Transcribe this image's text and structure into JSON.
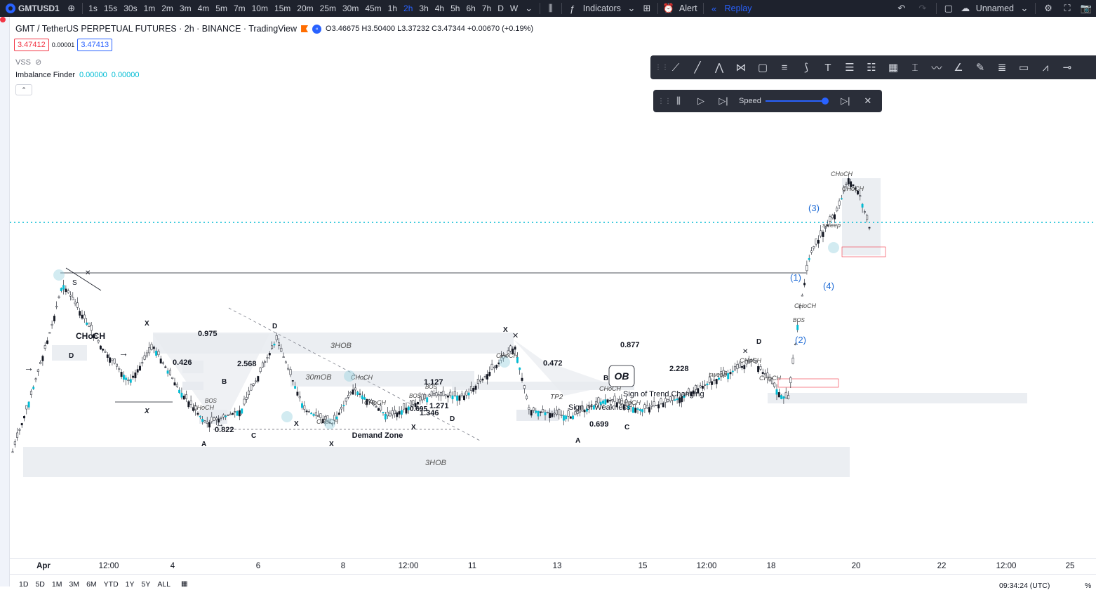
{
  "toolbar": {
    "symbol": "GMTUSD1",
    "intervals": [
      "1s",
      "15s",
      "30s",
      "1m",
      "2m",
      "3m",
      "4m",
      "5m",
      "7m",
      "10m",
      "15m",
      "20m",
      "25m",
      "30m",
      "45m",
      "1h",
      "2h",
      "3h",
      "4h",
      "5h",
      "6h",
      "7h",
      "D",
      "W"
    ],
    "active_interval": "2h",
    "indicators_label": "Indicators",
    "alert_label": "Alert",
    "replay_label": "Replay",
    "layout_name": "Unnamed",
    "icons": [
      "plus-icon",
      "chevron-down-icon",
      "candles-icon",
      "indicators-icon",
      "templates-icon",
      "alert-icon",
      "replay-icon",
      "undo-icon",
      "redo-icon",
      "layout-icon",
      "cloud-icon",
      "gear-icon",
      "fullscreen-icon",
      "camera-icon"
    ]
  },
  "legend": {
    "title": "GMT / TetherUS PERPETUAL FUTURES · 2h · BINANCE · TradingView",
    "ohlc": "O3.46675 H3.50400 L3.37232 C3.47344 +0.00670 (+0.19%)",
    "sell_price": "3.47412",
    "spread": "0.00001",
    "buy_price": "3.47413",
    "vss_label": "VSS",
    "imbalance_label": "Imbalance Finder",
    "imbalance_v1": "0.00000",
    "imbalance_v2": "0.00000"
  },
  "replay_control": {
    "speed_label": "Speed",
    "speed_level": 1.0
  },
  "time_axis": {
    "ticks": [
      "Apr",
      "12:00",
      "4",
      "6",
      "8",
      "12:00",
      "11",
      "13",
      "15",
      "12:00",
      "18",
      "20",
      "22",
      "12:00",
      "25"
    ],
    "bold": [
      "Apr"
    ]
  },
  "bottom": {
    "ranges": [
      "1D",
      "5D",
      "1M",
      "3M",
      "6M",
      "YTD",
      "1Y",
      "5Y",
      "ALL"
    ],
    "clock": "09:34:24 (UTC)",
    "pct": "%"
  },
  "annotations": {
    "fib_values": [
      "0.975",
      "0.426",
      "2.568",
      "0.877",
      "0.472",
      "2.228",
      "1.127",
      "1.271",
      "0.699",
      "0.822",
      "1.346",
      "0.695"
    ],
    "zone_labels": [
      "3HOB",
      "30mOB",
      "Demand Zone",
      "3HOB",
      "OB"
    ],
    "pattern_letters": [
      "X",
      "A",
      "B",
      "C",
      "D",
      "S"
    ],
    "elliott": [
      "(1)",
      "(2)",
      "(3)",
      "(4)"
    ],
    "structure": [
      "CHoCH",
      "BOS",
      "sweep",
      "TP2",
      "Sign of Weakness",
      "Sign of Trend Changing"
    ]
  },
  "colors": {
    "accent": "#2962ff",
    "bull": "#26a69a",
    "cyan": "#00bcd4",
    "bear": "#131722",
    "zone": "#e8ebf0",
    "topbar": "#1e222d"
  }
}
